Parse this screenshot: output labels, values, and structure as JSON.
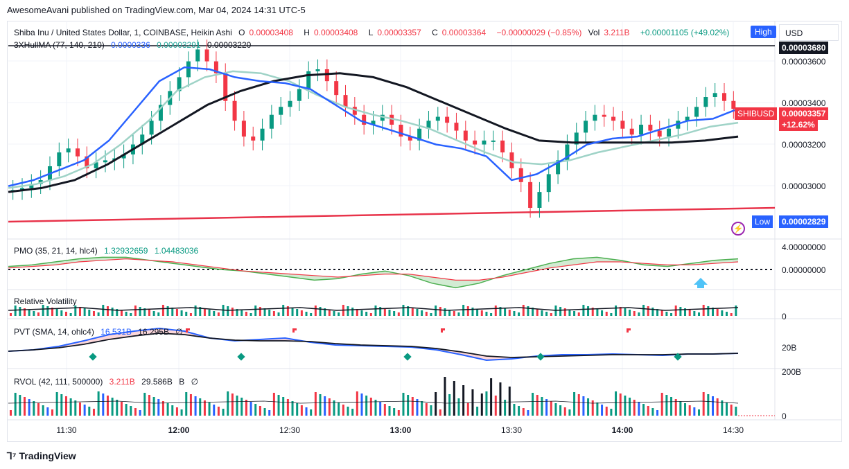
{
  "credit": "AwesomeAvani published on TradingView.com, Mar 04, 2024 14:31 UTC-5",
  "legend": {
    "title": "Shiba Inu / United States Dollar, 1, COINBASE, Heikin Ashi",
    "o_label": "O",
    "o_val": "0.00003408",
    "h_label": "H",
    "h_val": "0.00003408",
    "l_label": "L",
    "l_val": "0.00003357",
    "c_label": "C",
    "c_val": "0.00003364",
    "change": "−0.00000029 (−0.85%)",
    "vol_label": "Vol",
    "vol_val": "3.211B",
    "vol_change": "+0.00001105 (+49.02%)"
  },
  "hull": {
    "label": "3XHullMA (77, 140, 210)",
    "v1": "0.0000336",
    "v2": "0.00003291",
    "v3": "0.00003220"
  },
  "buttons": {
    "high": "High",
    "currency": "USD",
    "low": "Low"
  },
  "price_axis": [
    "0.00003600",
    "0.00003400",
    "0.00003200",
    "0.00003000"
  ],
  "price_tags": {
    "symbol": "SHIBUSD",
    "last": "0.00003357",
    "pct": "+12.62%",
    "low": "0.00002829",
    "high": "0.00003680"
  },
  "pmo": {
    "label": "PMO (35, 21, 14, hlc4)",
    "v1": "1.32932659",
    "v2": "1.04483036",
    "axis_top": "4.00000000",
    "axis_zero": "0.00000000"
  },
  "rv": {
    "label": "Relative Volatility",
    "axis_zero": "0"
  },
  "pvt": {
    "label": "PVT (SMA, 14, ohlc4)",
    "v1": "16.531B",
    "v2": "16.295B",
    "symbol": "∅",
    "axis": "20B"
  },
  "rvol": {
    "label": "RVOL (42, 111, 500000)",
    "v1": "3.211B",
    "v2": "29.586B",
    "v3": "B",
    "v4": "∅",
    "axis_top": "200B",
    "axis_zero": "0"
  },
  "time_axis": [
    {
      "label": "11:30",
      "bold": false
    },
    {
      "label": "12:00",
      "bold": true
    },
    {
      "label": "12:30",
      "bold": false
    },
    {
      "label": "13:00",
      "bold": true
    },
    {
      "label": "13:30",
      "bold": false
    },
    {
      "label": "14:00",
      "bold": true
    },
    {
      "label": "14:30",
      "bold": false
    }
  ],
  "brand": "TradingView",
  "colors": {
    "up": "#089981",
    "down": "#f23645",
    "hull_fast": "#2962ff",
    "hull_mid": "#9fd3c7",
    "hull_slow": "#131722",
    "trend": "#e8334a"
  },
  "chart_data": {
    "type": "candlestick",
    "title": "Shiba Inu / United States Dollar, 1, COINBASE, Heikin Ashi",
    "x_range": [
      "11:10",
      "14:31"
    ],
    "ylim": [
      2.79e-05,
      3.7e-05
    ],
    "close": [
      2.95e-05,
      2.96e-05,
      2.98e-05,
      3e-05,
      3.07e-05,
      3.14e-05,
      3.16e-05,
      3.12e-05,
      3.06e-05,
      3.09e-05,
      3.1e-05,
      3.11e-05,
      3.13e-05,
      3.18e-05,
      3.23e-05,
      3.3e-05,
      3.38e-05,
      3.45e-05,
      3.52e-05,
      3.6e-05,
      3.66e-05,
      3.6e-05,
      3.54e-05,
      3.4e-05,
      3.3e-05,
      3.22e-05,
      3.2e-05,
      3.26e-05,
      3.33e-05,
      3.37e-05,
      3.4e-05,
      3.46e-05,
      3.55e-05,
      3.56e-05,
      3.5e-05,
      3.43e-05,
      3.37e-05,
      3.33e-05,
      3.28e-05,
      3.3e-05,
      3.33e-05,
      3.28e-05,
      3.22e-05,
      3.2e-05,
      3.26e-05,
      3.3e-05,
      3.32e-05,
      3.29e-05,
      3.25e-05,
      3.2e-05,
      3.18e-05,
      3.2e-05,
      3.2e-05,
      3.14e-05,
      3.06e-05,
      2.99e-05,
      2.86e-05,
      2.94e-05,
      3.03e-05,
      3.1e-05,
      3.18e-05,
      3.24e-05,
      3.3e-05,
      3.33e-05,
      3.32e-05,
      3.3e-05,
      3.26e-05,
      3.23e-05,
      3.28e-05,
      3.25e-05,
      3.22e-05,
      3.26e-05,
      3.3e-05,
      3.32e-05,
      3.37e-05,
      3.42e-05,
      3.44e-05,
      3.4e-05,
      3.36e-05
    ],
    "hull_fast": [
      2.97e-05,
      3e-05,
      3.05e-05,
      3.1e-05,
      3.2e-05,
      3.35e-05,
      3.5e-05,
      3.57e-05,
      3.56e-05,
      3.52e-05,
      3.5e-05,
      3.49e-05,
      3.46e-05,
      3.38e-05,
      3.3e-05,
      3.26e-05,
      3.22e-05,
      3.18e-05,
      3.16e-05,
      3.12e-05,
      3e-05,
      3.03e-05,
      3.1e-05,
      3.18e-05,
      3.21e-05,
      3.22e-05,
      3.26e-05,
      3.3e-05,
      3.31e-05,
      3.36e-05
    ],
    "hull_mid": [
      2.96e-05,
      2.98e-05,
      3.02e-05,
      3.08e-05,
      3.18e-05,
      3.3e-05,
      3.45e-05,
      3.52e-05,
      3.55e-05,
      3.54e-05,
      3.5e-05,
      3.43e-05,
      3.37e-05,
      3.33e-05,
      3.3e-05,
      3.26e-05,
      3.2e-05,
      3.14e-05,
      3.09e-05,
      3.08e-05,
      3.1e-05,
      3.14e-05,
      3.17e-05,
      3.2e-05,
      3.23e-05,
      3.27e-05,
      3.29e-05
    ],
    "hull_slow": [
      2.94e-05,
      2.96e-05,
      3e-05,
      3.08e-05,
      3.18e-05,
      3.28e-05,
      3.38e-05,
      3.45e-05,
      3.5e-05,
      3.53e-05,
      3.54e-05,
      3.52e-05,
      3.47e-05,
      3.4e-05,
      3.33e-05,
      3.26e-05,
      3.2e-05,
      3.19e-05,
      3.19e-05,
      3.19e-05,
      3.19e-05,
      3.2e-05,
      3.22e-05
    ],
    "trend_line": [
      [
        0,
        2.79e-05
      ],
      [
        1,
        2.86e-05
      ]
    ]
  }
}
